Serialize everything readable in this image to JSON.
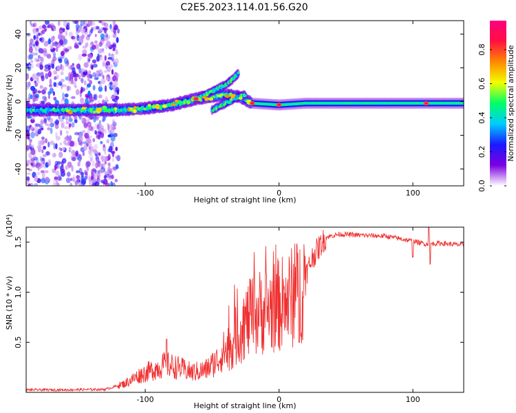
{
  "title": "C2E5.2023.114.01.56.G20",
  "chart_data": [
    {
      "type": "heatmap",
      "xlabel": "Height of straight line (km)",
      "ylabel": "Frequency (Hz)",
      "xlim": [
        -189,
        138
      ],
      "ylim": [
        -50,
        48
      ],
      "x_ticks": [
        -100,
        0,
        100
      ],
      "x_tick_labels": [
        "-100",
        "0",
        "100"
      ],
      "y_ticks": [
        -40,
        -20,
        0,
        20,
        40
      ],
      "y_tick_labels": [
        "-40",
        "-20",
        "0",
        "20",
        "40"
      ],
      "colorbar": {
        "label": "Normalized spectral amplitude",
        "range": [
          0,
          0.97
        ],
        "ticks": [
          0.0,
          0.2,
          0.4,
          0.6,
          0.8
        ],
        "tick_labels": [
          "0.0",
          "0.2",
          "0.4",
          "0.6",
          "0.8"
        ],
        "colors": [
          "#ffffff",
          "#7b00e0",
          "#1a1aff",
          "#00ccff",
          "#00ff66",
          "#f2ff00",
          "#ff8800",
          "#ff1040",
          "#ff0080"
        ]
      },
      "traces": [
        {
          "name": "main-band",
          "x": [
            -189,
            -150,
            -120,
            -100,
            -80,
            -70,
            -60,
            -50,
            -40,
            -30,
            -20,
            0,
            20,
            50,
            80,
            110,
            138
          ],
          "y": [
            -5,
            -5,
            -5,
            -4,
            -2,
            0,
            2,
            3,
            4,
            3,
            -1,
            -2,
            -1,
            -1,
            -1,
            -1,
            -1
          ]
        },
        {
          "name": "upper-branch",
          "x": [
            -60,
            -55,
            -50,
            -45,
            -40,
            -35,
            -30
          ],
          "y": [
            2,
            4,
            6,
            8,
            10,
            13,
            17
          ]
        },
        {
          "name": "lower-branch",
          "x": [
            -50,
            -45,
            -40,
            -35,
            -30,
            -25
          ],
          "y": [
            -5,
            -3,
            -1,
            1,
            3,
            4
          ]
        }
      ],
      "noise_region_x": [
        -189,
        -120
      ],
      "hotspots_x": [
        -62,
        -20,
        0,
        110
      ]
    },
    {
      "type": "line",
      "xlabel": "Height of straight line (km)",
      "ylabel": "SNR (10 * v/v)",
      "y_multiplier": "(x10⁴)",
      "xlim": [
        -189,
        138
      ],
      "ylim": [
        0,
        16500
      ],
      "x_ticks": [
        -100,
        0,
        100
      ],
      "x_tick_labels": [
        "-100",
        "0",
        "100"
      ],
      "y_ticks": [
        5000,
        10000,
        15000
      ],
      "y_tick_labels": [
        "0.5",
        "1.0",
        "1.5"
      ],
      "color": "#f03030",
      "x": [
        -189,
        -160,
        -130,
        -115,
        -105,
        -95,
        -85,
        -75,
        -65,
        -55,
        -45,
        -35,
        -25,
        -15,
        -5,
        5,
        15,
        25,
        35,
        45,
        60,
        80,
        100,
        110,
        120,
        138
      ],
      "y": [
        200,
        200,
        250,
        800,
        1500,
        2000,
        2500,
        2200,
        1800,
        2000,
        3000,
        5000,
        7000,
        8000,
        8500,
        9000,
        10000,
        13500,
        15500,
        15800,
        15700,
        15600,
        15100,
        14800,
        14900,
        14700
      ]
    }
  ]
}
